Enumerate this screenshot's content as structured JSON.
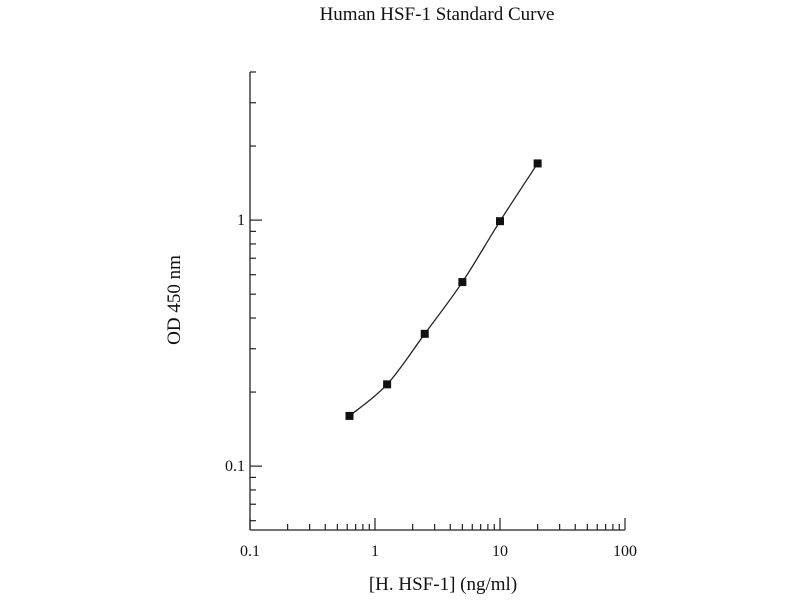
{
  "chart_data": {
    "type": "line",
    "title": "Human HSF-1 Standard Curve",
    "xlabel": "[H. HSF-1] (ng/ml)",
    "ylabel": "OD 450 nm",
    "x_scale": "log",
    "y_scale": "log",
    "xlim": [
      0.1,
      100
    ],
    "ylim": [
      0.055,
      4
    ],
    "x_ticks": [
      {
        "value": 0.1,
        "label": "0.1"
      },
      {
        "value": 1,
        "label": "1"
      },
      {
        "value": 10,
        "label": "10"
      },
      {
        "value": 100,
        "label": "100"
      }
    ],
    "y_ticks": [
      {
        "value": 0.1,
        "label": "0.1"
      },
      {
        "value": 1,
        "label": "1"
      }
    ],
    "grid": false,
    "series": [
      {
        "x": [
          0.625,
          1.25,
          2.5,
          5,
          10,
          20
        ],
        "y": [
          0.16,
          0.215,
          0.345,
          0.56,
          0.99,
          1.7
        ]
      }
    ]
  }
}
